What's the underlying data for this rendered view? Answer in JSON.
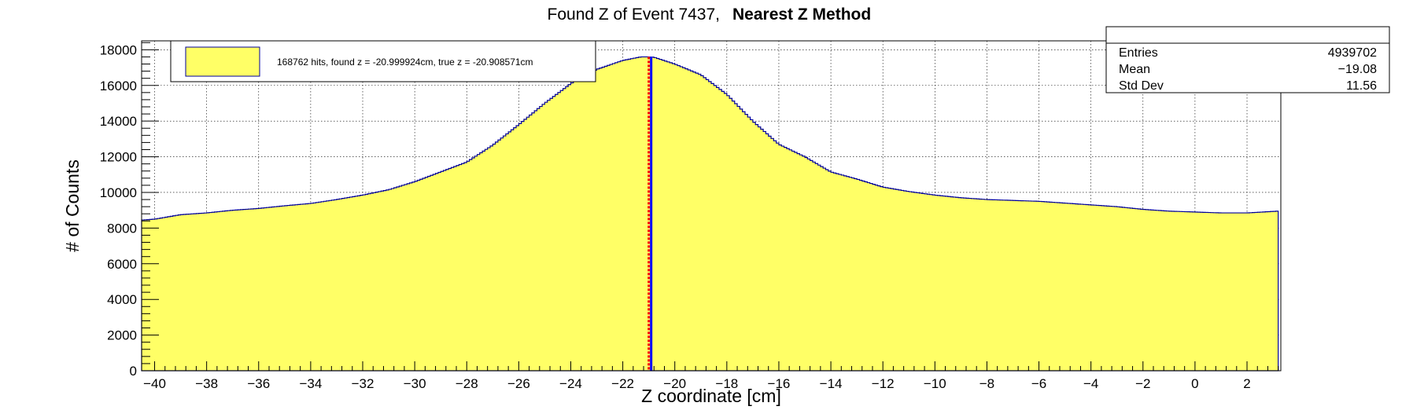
{
  "chart_data": {
    "type": "histogram",
    "title": "Found Z of Event 7437,",
    "title_bold": "Nearest Z Method",
    "xlabel": "Z coordinate [cm]",
    "ylabel": "# of Counts",
    "xlim": [
      -40.5,
      3.3
    ],
    "ylim": [
      0,
      18500
    ],
    "x_ticks": [
      -40,
      -38,
      -36,
      -34,
      -32,
      -30,
      -28,
      -26,
      -24,
      -22,
      -20,
      -18,
      -16,
      -14,
      -12,
      -10,
      -8,
      -6,
      -4,
      -2,
      0,
      2
    ],
    "x_tick_labels": [
      "−40",
      "−38",
      "−36",
      "−34",
      "−32",
      "−30",
      "−28",
      "−26",
      "−24",
      "−22",
      "−20",
      "−18",
      "−16",
      "−14",
      "−12",
      "−10",
      "−8",
      "−6",
      "−4",
      "−2",
      "0",
      "2"
    ],
    "y_ticks": [
      0,
      2000,
      4000,
      6000,
      8000,
      10000,
      12000,
      14000,
      16000,
      18000
    ],
    "y_tick_labels": [
      "0",
      "2000",
      "4000",
      "6000",
      "8000",
      "10000",
      "12000",
      "14000",
      "16000",
      "18000"
    ],
    "grid": true,
    "fill_color": "#ffff66",
    "line_color": "#000099",
    "series": [
      {
        "name": "168762 hits, found z = -20.999924cm, true z = -20.908571cm",
        "x": [
          -40.5,
          -40,
          -39,
          -38,
          -37,
          -36,
          -35,
          -34,
          -33,
          -32,
          -31,
          -30,
          -29,
          -28,
          -27,
          -26,
          -25,
          -24,
          -23,
          -22,
          -21.3,
          -21,
          -20.8,
          -20,
          -19,
          -18,
          -17,
          -16,
          -15,
          -14,
          -13,
          -12,
          -11,
          -10,
          -9,
          -8,
          -7,
          -6,
          -5,
          -4,
          -3,
          -2,
          -1,
          0,
          1,
          2,
          3.2
        ],
        "y": [
          8450,
          8500,
          8750,
          8850,
          9000,
          9100,
          9250,
          9380,
          9600,
          9850,
          10150,
          10600,
          11150,
          11700,
          12650,
          13800,
          15000,
          16100,
          16900,
          17400,
          17600,
          17600,
          17580,
          17200,
          16600,
          15500,
          14000,
          12700,
          12000,
          11150,
          10750,
          10300,
          10050,
          9850,
          9700,
          9600,
          9550,
          9500,
          9400,
          9300,
          9200,
          9050,
          8950,
          8900,
          8850,
          8850,
          8950
        ]
      }
    ],
    "markers": [
      {
        "name": "found z",
        "value": -20.999924,
        "color": "#ff0000"
      },
      {
        "name": "true z",
        "value": -20.908571,
        "color": "#0000ff"
      }
    ],
    "legend_position": "top-left",
    "stats": {
      "rows": [
        {
          "label": "Entries",
          "value": "4939702"
        },
        {
          "label": "Mean",
          "value": "−19.08"
        },
        {
          "label": "Std Dev",
          "value": "11.56"
        }
      ]
    }
  }
}
